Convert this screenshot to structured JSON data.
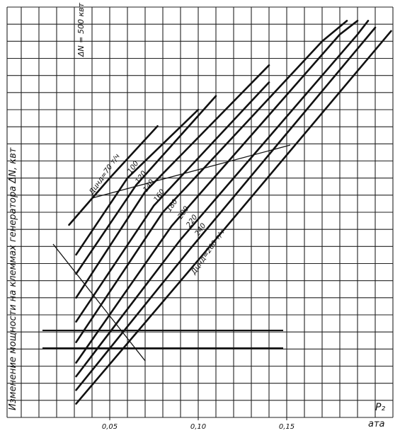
{
  "chart_data": {
    "type": "line",
    "scale_note": "ΔN = 500 квт",
    "y_label": "Изменение мощности на клеммах генератора ΔN, квт",
    "x_label": "P₂",
    "x_unit": "ата",
    "xlim": [
      -0.008,
      0.21
    ],
    "ylim": [
      0,
      12000
    ],
    "xticks": [
      {
        "value": 0.05,
        "label": "0,05"
      },
      {
        "value": 0.1,
        "label": "0,10"
      },
      {
        "value": 0.15,
        "label": "0,15"
      }
    ],
    "series": [
      {
        "name": "Дцнд=70 т/ч",
        "color": "#111",
        "x": [
          0.027,
          0.05,
          0.077
        ],
        "values": [
          5630,
          7000,
          8520
        ]
      },
      {
        "name": "100",
        "color": "#111",
        "x": [
          0.031,
          0.06,
          0.1
        ],
        "values": [
          4760,
          7000,
          9000
        ]
      },
      {
        "name": "120",
        "color": "#111",
        "x": [
          0.031,
          0.065,
          0.11
        ],
        "values": [
          4200,
          6800,
          9400
        ]
      },
      {
        "name": "140",
        "color": "#111",
        "x": [
          0.031,
          0.07,
          0.14
        ],
        "values": [
          3500,
          6600,
          10300
        ]
      },
      {
        "name": "160",
        "color": "#111",
        "x": [
          0.031,
          0.075,
          0.14
        ],
        "values": [
          2800,
          6200,
          9800
        ]
      },
      {
        "name": "180",
        "color": "#111",
        "x": [
          0.031,
          0.08,
          0.17,
          0.184
        ],
        "values": [
          2200,
          6000,
          11000,
          11600
        ]
      },
      {
        "name": "200",
        "color": "#111",
        "x": [
          0.031,
          0.085,
          0.18,
          0.19
        ],
        "values": [
          1600,
          5600,
          11200,
          11600
        ]
      },
      {
        "name": "220",
        "color": "#111",
        "x": [
          0.031,
          0.09,
          0.19,
          0.196
        ],
        "values": [
          1200,
          5200,
          11200,
          11600
        ]
      },
      {
        "name": "240",
        "color": "#111",
        "x": [
          0.031,
          0.095,
          0.2
        ],
        "values": [
          800,
          4900,
          11400
        ]
      },
      {
        "name": "Дцнд=260 т/ч",
        "color": "#111",
        "x": [
          0.031,
          0.1,
          0.209
        ],
        "values": [
          400,
          4600,
          11300
        ]
      }
    ]
  }
}
